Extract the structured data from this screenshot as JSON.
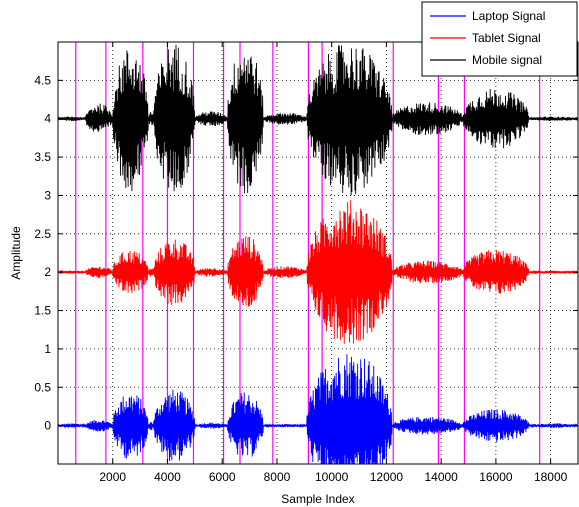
{
  "chart_data": {
    "type": "line",
    "title": "",
    "xlabel": "Sample Index",
    "ylabel": "Amplitude",
    "xlim": [
      0,
      19000
    ],
    "ylim": [
      -0.5,
      5.0
    ],
    "xticks": [
      2000,
      4000,
      6000,
      8000,
      10000,
      12000,
      14000,
      16000,
      18000
    ],
    "xtick_labels": [
      "2000",
      "4000",
      "6000",
      "8000",
      "10000",
      "12000",
      "14000",
      "16000",
      "18000"
    ],
    "yticks": [
      0,
      0.5,
      1,
      1.5,
      2,
      2.5,
      3,
      3.5,
      4,
      4.5
    ],
    "ytick_labels": [
      "0",
      "0.5",
      "1",
      "1.5",
      "2",
      "2.5",
      "3",
      "3.5",
      "4",
      "4.5"
    ],
    "grid": true,
    "grid_style": "dotted",
    "legend_position": "top-right",
    "series": [
      {
        "name": "Laptop Signal",
        "color": "#0000ff",
        "baseline": 0,
        "segments": [
          {
            "start": 0,
            "end": 1000,
            "peak": 0.03
          },
          {
            "start": 1000,
            "end": 2000,
            "peak": 0.08
          },
          {
            "start": 2000,
            "end": 3300,
            "peak": 0.45
          },
          {
            "start": 3300,
            "end": 3500,
            "peak": 0.06
          },
          {
            "start": 3500,
            "end": 5000,
            "peak": 0.48
          },
          {
            "start": 5000,
            "end": 6200,
            "peak": 0.04
          },
          {
            "start": 6200,
            "end": 7500,
            "peak": 0.45
          },
          {
            "start": 7500,
            "end": 9100,
            "peak": 0.02
          },
          {
            "start": 9100,
            "end": 12200,
            "peak": 1.0
          },
          {
            "start": 12200,
            "end": 14800,
            "peak": 0.12
          },
          {
            "start": 14800,
            "end": 17200,
            "peak": 0.22
          },
          {
            "start": 17200,
            "end": 19000,
            "peak": 0.03
          }
        ]
      },
      {
        "name": "Tablet Signal",
        "color": "#ff0000",
        "baseline": 2,
        "segments": [
          {
            "start": 0,
            "end": 1000,
            "peak": 0.02
          },
          {
            "start": 1000,
            "end": 2000,
            "peak": 0.08
          },
          {
            "start": 2000,
            "end": 3300,
            "peak": 0.3
          },
          {
            "start": 3300,
            "end": 3500,
            "peak": 0.06
          },
          {
            "start": 3500,
            "end": 5000,
            "peak": 0.45
          },
          {
            "start": 5000,
            "end": 6200,
            "peak": 0.06
          },
          {
            "start": 6200,
            "end": 7500,
            "peak": 0.5
          },
          {
            "start": 7500,
            "end": 9100,
            "peak": 0.08
          },
          {
            "start": 9100,
            "end": 12200,
            "peak": 0.95
          },
          {
            "start": 12200,
            "end": 14800,
            "peak": 0.15
          },
          {
            "start": 14800,
            "end": 17200,
            "peak": 0.3
          },
          {
            "start": 17200,
            "end": 19000,
            "peak": 0.02
          }
        ]
      },
      {
        "name": "Mobile signal",
        "color": "#000000",
        "baseline": 4,
        "segments": [
          {
            "start": 0,
            "end": 1000,
            "peak": 0.03
          },
          {
            "start": 1000,
            "end": 2000,
            "peak": 0.2
          },
          {
            "start": 2000,
            "end": 3300,
            "peak": 0.95
          },
          {
            "start": 3300,
            "end": 3500,
            "peak": 0.1
          },
          {
            "start": 3500,
            "end": 5000,
            "peak": 1.0
          },
          {
            "start": 5000,
            "end": 6200,
            "peak": 0.1
          },
          {
            "start": 6200,
            "end": 7500,
            "peak": 1.0
          },
          {
            "start": 7500,
            "end": 9100,
            "peak": 0.08
          },
          {
            "start": 9100,
            "end": 12200,
            "peak": 1.0
          },
          {
            "start": 12200,
            "end": 14800,
            "peak": 0.22
          },
          {
            "start": 14800,
            "end": 17200,
            "peak": 0.4
          },
          {
            "start": 17200,
            "end": 19000,
            "peak": 0.03
          }
        ]
      }
    ],
    "vertical_markers": {
      "color": "#ff00ff",
      "x": [
        650,
        1750,
        3100,
        4000,
        4950,
        6050,
        6650,
        7850,
        9150,
        9650,
        12250,
        13900,
        14850,
        17600
      ]
    }
  }
}
